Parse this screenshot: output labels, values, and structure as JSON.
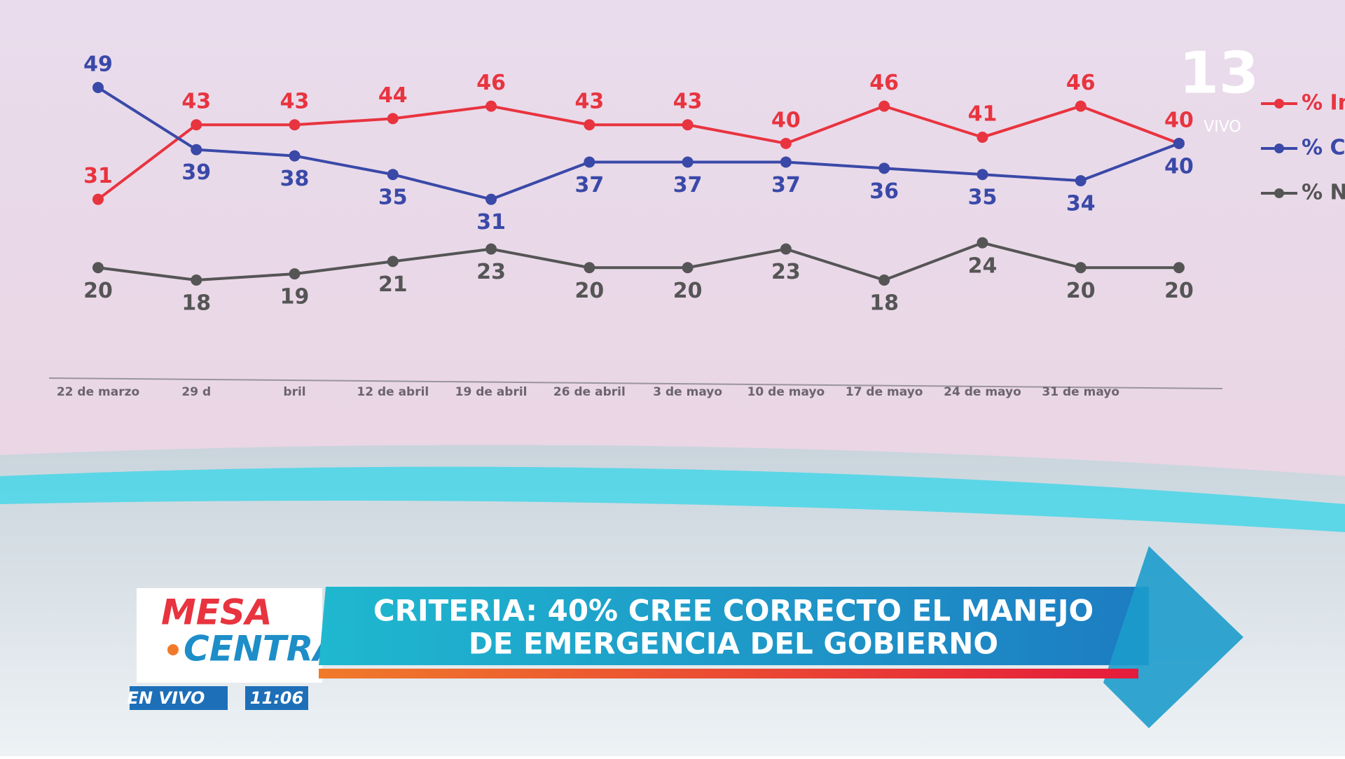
{
  "chart_data": {
    "type": "line",
    "categories": [
      "22 de marzo",
      "29 d",
      "bril",
      "12 de abril",
      "19 de abril",
      "26 de abril",
      "3 de mayo",
      "10 de mayo",
      "17 de mayo",
      "24 de mayo",
      "31 de mayo",
      null
    ],
    "series": [
      {
        "name": "% In",
        "color": "#e8343f",
        "values": [
          31,
          43,
          43,
          44,
          46,
          43,
          43,
          40,
          46,
          41,
          46,
          40
        ]
      },
      {
        "name": "% Co",
        "color": "#3a49a8",
        "values": [
          49,
          39,
          38,
          35,
          31,
          37,
          37,
          37,
          36,
          35,
          34,
          40
        ]
      },
      {
        "name": "% N",
        "color": "#555555",
        "values": [
          20,
          18,
          19,
          21,
          23,
          20,
          20,
          23,
          18,
          24,
          20,
          20
        ]
      }
    ]
  },
  "logo": {
    "number": "13",
    "live": "VIVO"
  },
  "lower_third": {
    "brand_top": "MESA",
    "brand_bottom": "CENTRAL",
    "headline_1": "CRITERIA: 40% CREE CORRECTO EL MANEJO",
    "headline_2": "DE EMERGENCIA DEL GOBIERNO",
    "live": "EN VIVO",
    "time": "11:06"
  }
}
